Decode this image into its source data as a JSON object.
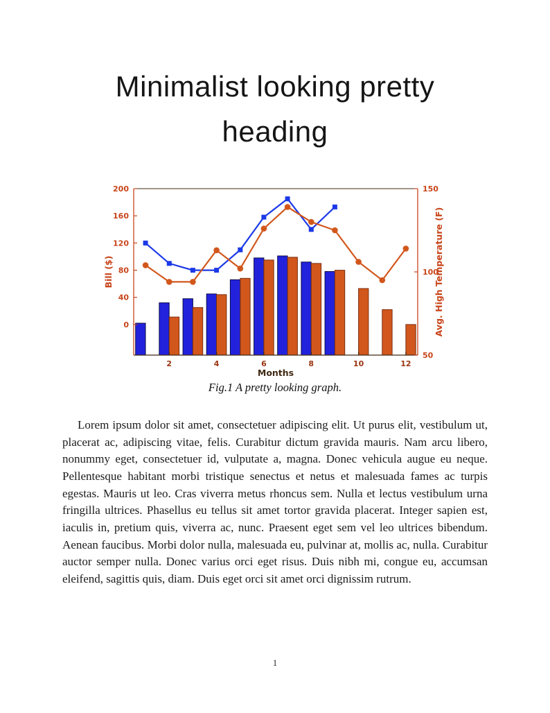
{
  "page": {
    "heading": "Minimalist looking pretty heading",
    "figure_caption": "Fig.1 A pretty looking graph.",
    "paragraph": "Lorem ipsum dolor sit amet, consectetuer adipiscing elit. Ut purus elit, vestibulum ut, placerat ac, adipiscing vitae, felis. Curabitur dictum gravida mauris. Nam arcu libero, nonummy eget, consectetuer id, vulputate a, magna. Donec vehicula augue eu neque. Pellentesque habitant morbi tristique senectus et netus et malesuada fames ac turpis egestas. Mauris ut leo. Cras viverra metus rhoncus sem. Nulla et lectus vestibulum urna fringilla ultrices. Phasellus eu tellus sit amet tortor gravida placerat. Integer sapien est, iaculis in, pretium quis, viverra ac, nunc. Praesent eget sem vel leo ultrices bibendum. Aenean faucibus. Morbi dolor nulla, malesuada eu, pulvinar at, mollis ac, nulla. Curabitur auctor semper nulla. Donec varius orci eget risus. Duis nibh mi, congue eu, accumsan eleifend, sagittis quis, diam. Duis eget orci sit amet orci dignissim rutrum.",
    "page_number": "1"
  },
  "chart_data": {
    "type": "combo-bar-line",
    "title": "",
    "xlabel": "Months",
    "ylabel_left": "Bill ($)",
    "ylabel_right": "Avg. High Temperature (F)",
    "x": [
      1,
      2,
      3,
      4,
      5,
      6,
      7,
      8,
      9,
      10,
      11,
      12
    ],
    "x_ticks": [
      2,
      4,
      6,
      8,
      10,
      12
    ],
    "left_axis": {
      "range": [
        -45,
        200
      ],
      "ticks": [
        0,
        40,
        80,
        120,
        160,
        200
      ],
      "color": "#C8451B"
    },
    "right_axis": {
      "range": [
        50,
        150
      ],
      "ticks": [
        50,
        100,
        150
      ],
      "color": "#C8451B"
    },
    "x_axis": {
      "color": "#402A14",
      "tick_label_color": "#9A3512",
      "label_color": "#402A14"
    },
    "grid": false,
    "legend": "none",
    "bar_series": [
      {
        "name": "bill-bars-blue",
        "axis": "left",
        "color": "#2222DD",
        "edge": "#0B0B46",
        "values": [
          2,
          32,
          38,
          45,
          66,
          98,
          101,
          92,
          78,
          null,
          null,
          null
        ]
      },
      {
        "name": "temperature-bars-orange",
        "axis": "left",
        "color": "#D2571C",
        "edge": "#7A2F0E",
        "values": [
          null,
          11,
          25,
          44,
          68,
          95,
          99,
          90,
          80,
          53,
          22,
          0
        ]
      }
    ],
    "line_series": [
      {
        "name": "bill-line-blue",
        "axis": "left",
        "color": "#1C39E8",
        "marker": "square",
        "values": [
          120,
          90,
          80,
          80,
          110,
          158,
          185,
          140,
          173,
          null,
          null,
          null
        ]
      },
      {
        "name": "temperature-line-orange",
        "axis": "right",
        "color": "#D2571C",
        "marker": "circle",
        "values": [
          104,
          94,
          94,
          113,
          102,
          126,
          139,
          130,
          125,
          106,
          95,
          114
        ]
      }
    ]
  }
}
